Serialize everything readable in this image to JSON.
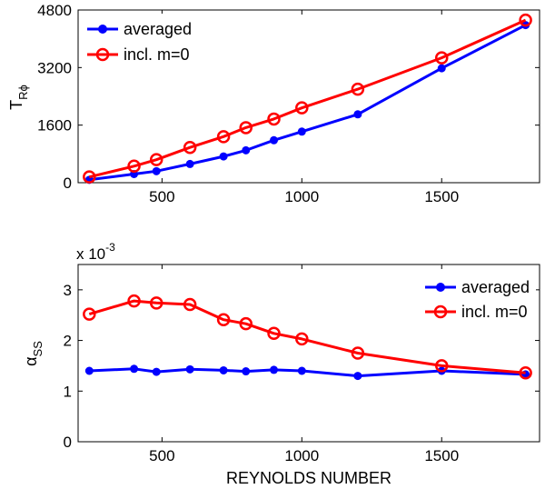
{
  "chart_data": [
    {
      "type": "line",
      "title": "",
      "xlabel": "",
      "ylabel": "T",
      "ylabel_subscript": "Rϕ",
      "xlim": [
        200,
        1850
      ],
      "ylim": [
        0,
        4800
      ],
      "xticks": [
        500,
        1000,
        1500
      ],
      "xtick_labels": [
        "500",
        "1000",
        "1500"
      ],
      "yticks": [
        0,
        1600,
        3200,
        4800
      ],
      "ytick_labels": [
        "0",
        "1600",
        "3200",
        "4800"
      ],
      "legend_position": "top-left",
      "x": [
        240,
        400,
        480,
        600,
        720,
        800,
        900,
        1000,
        1200,
        1500,
        1800
      ],
      "series": [
        {
          "name": "averaged",
          "color": "#0000ff",
          "marker": "filled-circle",
          "values": [
            80,
            240,
            320,
            520,
            730,
            900,
            1180,
            1420,
            1900,
            3180,
            4380
          ]
        },
        {
          "name": "incl. m=0",
          "color": "#ff0000",
          "marker": "open-circle",
          "values": [
            160,
            460,
            640,
            980,
            1280,
            1530,
            1770,
            2080,
            2600,
            3470,
            4520
          ]
        }
      ]
    },
    {
      "type": "line",
      "title": "",
      "xlabel": "REYNOLDS NUMBER",
      "ylabel": "α",
      "ylabel_subscript": "SS",
      "scale_note": "x 10",
      "scale_exponent": "-3",
      "xlim": [
        200,
        1850
      ],
      "ylim": [
        0,
        3.5
      ],
      "xticks": [
        500,
        1000,
        1500
      ],
      "xtick_labels": [
        "500",
        "1000",
        "1500"
      ],
      "yticks": [
        0,
        1,
        2,
        3
      ],
      "ytick_labels": [
        "0",
        "1",
        "2",
        "3"
      ],
      "legend_position": "top-right",
      "x": [
        240,
        400,
        480,
        600,
        720,
        800,
        900,
        1000,
        1200,
        1500,
        1800
      ],
      "series": [
        {
          "name": "averaged",
          "color": "#0000ff",
          "marker": "filled-circle",
          "values": [
            1.4,
            1.44,
            1.38,
            1.43,
            1.41,
            1.39,
            1.42,
            1.4,
            1.3,
            1.4,
            1.33
          ]
        },
        {
          "name": "incl. m=0",
          "color": "#ff0000",
          "marker": "open-circle",
          "values": [
            2.52,
            2.78,
            2.74,
            2.71,
            2.41,
            2.33,
            2.14,
            2.03,
            1.75,
            1.5,
            1.36
          ]
        }
      ]
    }
  ]
}
